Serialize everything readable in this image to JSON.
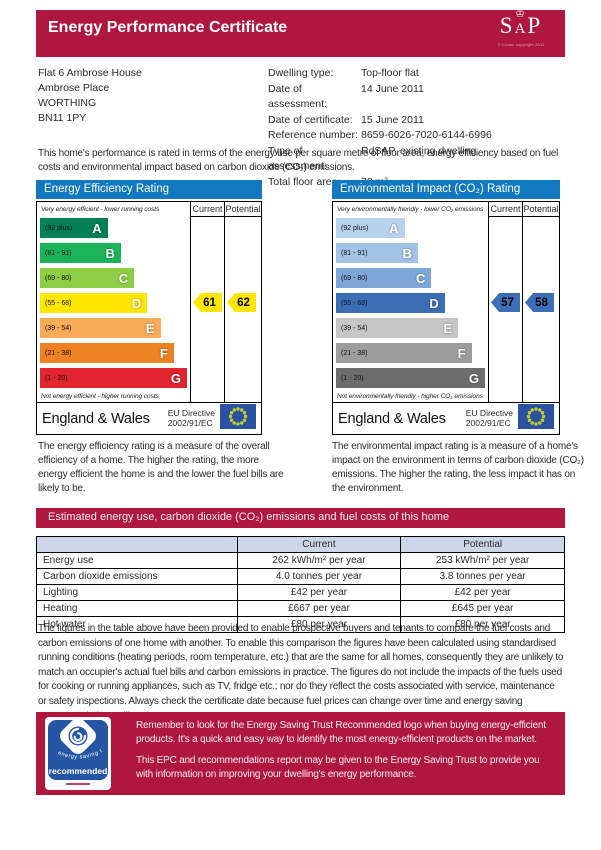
{
  "header": {
    "title": "Energy Performance Certificate",
    "sap_logo": {
      "letters_left": "S",
      "letter_mid": "A",
      "letters_right": "P",
      "crown_icon": "crown",
      "copyright": "© Crown copyright 2011"
    }
  },
  "address": {
    "lines": [
      "Flat 6 Ambrose House",
      "Ambrose Place",
      "WORTHING",
      "BN11 1PY"
    ]
  },
  "details": {
    "rows": [
      {
        "label": "Dwelling type:",
        "value": "Top-floor flat"
      },
      {
        "label": "Date of assessment:",
        "value": "14 June 2011"
      },
      {
        "label": "Date of certificate:",
        "value": "15 June 2011"
      },
      {
        "label": "Reference number:",
        "value": "8659-6026-7020-6144-6996"
      },
      {
        "label": "Type of assessment:",
        "value": "RdSAP, existing dwelling"
      },
      {
        "label": "Total floor area:",
        "value": "78 m²"
      }
    ]
  },
  "intro": "This home's performance is rated in terms of the energy use per square metre of floor area, energy efficiency based on fuel costs and environmental impact based on carbon dioxide (CO₂) emissions.",
  "charts": {
    "energy": {
      "title": "Energy Efficiency Rating",
      "col_current": "Current",
      "col_potential": "Potential",
      "top_note": "Very energy efficient - lower running costs",
      "bottom_note": "Not energy efficient - higher running costs",
      "bands": [
        {
          "range": "(92 plus)",
          "letter": "A",
          "color": "#008054",
          "width_pct": 46
        },
        {
          "range": "(81 - 91)",
          "letter": "B",
          "color": "#1bb35a",
          "width_pct": 55
        },
        {
          "range": "(69 - 80)",
          "letter": "C",
          "color": "#8dce46",
          "width_pct": 64
        },
        {
          "range": "(55 - 68)",
          "letter": "D",
          "color": "#ffe600",
          "width_pct": 73
        },
        {
          "range": "(39 - 54)",
          "letter": "E",
          "color": "#f8ab59",
          "width_pct": 82
        },
        {
          "range": "(21 - 38)",
          "letter": "F",
          "color": "#ee8122",
          "width_pct": 91
        },
        {
          "range": "(1 - 20)",
          "letter": "G",
          "color": "#e2242e",
          "width_pct": 100
        }
      ],
      "current": {
        "value": "61",
        "band_index": 3,
        "color": "#ffe600"
      },
      "potential": {
        "value": "62",
        "band_index": 3,
        "color": "#ffe600"
      },
      "footer": {
        "region": "England & Wales",
        "directive_line1": "EU Directive",
        "directive_line2": "2002/91/EC",
        "flag_icon": "eu-flag"
      }
    },
    "environmental": {
      "title": "Environmental Impact (CO₂) Rating",
      "col_current": "Current",
      "col_potential": "Potential",
      "top_note": "Very environmentally friendly - lower CO₂ emissions",
      "bottom_note": "Not environmentally friendly - higher CO₂ emissions",
      "bands": [
        {
          "range": "(92 plus)",
          "letter": "A",
          "color": "#b9d2ec",
          "width_pct": 46
        },
        {
          "range": "(81 - 91)",
          "letter": "B",
          "color": "#a2c2e6",
          "width_pct": 55
        },
        {
          "range": "(69 - 80)",
          "letter": "C",
          "color": "#7da7d8",
          "width_pct": 64
        },
        {
          "range": "(55 - 68)",
          "letter": "D",
          "color": "#3b6eb5",
          "width_pct": 73
        },
        {
          "range": "(39 - 54)",
          "letter": "E",
          "color": "#c6c6c6",
          "width_pct": 82
        },
        {
          "range": "(21 - 38)",
          "letter": "F",
          "color": "#9d9d9d",
          "width_pct": 91
        },
        {
          "range": "(1 - 20)",
          "letter": "G",
          "color": "#6d6d6d",
          "width_pct": 100
        }
      ],
      "current": {
        "value": "57",
        "band_index": 3,
        "color": "#3b6eb5"
      },
      "potential": {
        "value": "58",
        "band_index": 3,
        "color": "#3b6eb5"
      },
      "footer": {
        "region": "England & Wales",
        "directive_line1": "EU Directive",
        "directive_line2": "2002/91/EC",
        "flag_icon": "eu-flag"
      }
    }
  },
  "chart_descriptions": {
    "energy": "The energy efficiency rating is a measure of the overall efficiency of a home. The higher the rating, the more energy efficient the home is and the lower the fuel bills are likely to be.",
    "environmental": "The environmental impact rating is a measure of a home's impact on the environment in terms of carbon dioxide (CO₂) emissions. The higher the rating, the less impact it has on the environment."
  },
  "cost_section": {
    "banner": "Estimated energy use, carbon dioxide (CO₂) emissions and fuel costs of this home",
    "headers": [
      "",
      "Current",
      "Potential"
    ],
    "rows": [
      {
        "label": "Energy use",
        "current": "262 kWh/m² per year",
        "potential": "253 kWh/m² per year"
      },
      {
        "label": "Carbon dioxide emissions",
        "current": "4.0 tonnes per year",
        "potential": "3.8 tonnes per year"
      },
      {
        "label": "Lighting",
        "current": "£42 per year",
        "potential": "£42 per year"
      },
      {
        "label": "Heating",
        "current": "£667 per year",
        "potential": "£645 per year"
      },
      {
        "label": "Hot water",
        "current": "£80 per year",
        "potential": "£80 per year"
      }
    ]
  },
  "figures_note": "The figures in the table above have been provided to enable prospective buyers and tenants to compare the fuel costs and carbon emissions of one home with another. To enable this comparison the figures have been calculated using standardised running conditions (heating periods, room temperature, etc.) that are the same for all homes, consequently they are unlikely to match an occupier's actual fuel bills and carbon emissions in practice. The figures do not include the impacts of the fuels used for cooking or running appliances, such as TV, fridge etc.; nor do they reflect the costs associated with service, maintenance or safety inspections. Always check the certificate date because fuel prices can change over time and energy saving recommendations will evolve.",
  "est_banner": {
    "paragraph1": "Remember to look for the Energy Saving Trust Recommended logo when buying energy-efficient products. It's a quick and easy way to identify the most energy-efficient products on the market.",
    "paragraph2": "This EPC and recommendations report may be given to the Energy Saving Trust to provide you with information on improving your dwelling's energy performance.",
    "logo": {
      "arc_text": "energy saving trust",
      "label": "recommended",
      "swirl_icon": "est-swirl"
    }
  },
  "colors": {
    "crimson": "#b0173f",
    "blue_header": "#1279be",
    "table_header_bg": "#ccd6e8",
    "eu_flag_blue": "#2a52a0",
    "eu_star": "#c5cf2b",
    "est_blue": "#2456a4"
  }
}
